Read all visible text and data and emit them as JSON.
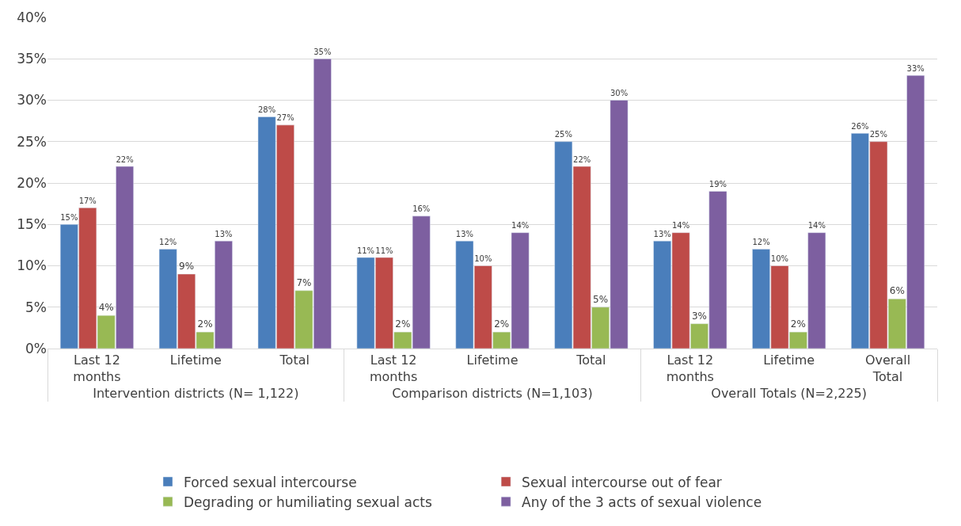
{
  "chart_data": {
    "type": "bar",
    "categories": [
      "Last 12 months",
      "Lifetime",
      "Total",
      "Last 12 months",
      "Lifetime",
      "Total",
      "Last 12 months",
      "Lifetime",
      "Overall Total"
    ],
    "annotations": [
      "Intervention districts (N= 1,122)",
      "Comparison districts (N=1,103)",
      "Overall Totals (N=2,225)"
    ],
    "series": [
      {
        "name": "Forced sexual intercourse",
        "color": "#4a7ebb",
        "values": [
          15,
          12,
          28,
          11,
          13,
          25,
          13,
          12,
          26
        ],
        "value_labels": [
          "15%",
          "12%",
          "28%",
          "11%",
          "13%",
          "25%",
          "13%",
          "12%",
          "26%"
        ]
      },
      {
        "name": "Sexual intercourse out of fear",
        "color": "#be4b48",
        "values": [
          17,
          9,
          27,
          11,
          10,
          22,
          14,
          10,
          25
        ],
        "value_labels": [
          "17%",
          "9%",
          "27%",
          "11%",
          "10%",
          "22%",
          "14%",
          "10%",
          "25%"
        ]
      },
      {
        "name": "Degrading or humiliating sexual acts",
        "color": "#98b954",
        "values": [
          4,
          2,
          7,
          2,
          2,
          5,
          3,
          2,
          6
        ],
        "value_labels": [
          "4%",
          "2%",
          "7%",
          "2%",
          "2%",
          "5%",
          "3%",
          "2%",
          "6%"
        ]
      },
      {
        "name": "Any of the 3 acts of sexual violence",
        "color": "#7d5fa0",
        "values": [
          22,
          13,
          35,
          16,
          14,
          30,
          19,
          14,
          33
        ],
        "value_labels": [
          "22%",
          "13%",
          "35%",
          "16%",
          "14%",
          "30%",
          "19%",
          "14%",
          "33%"
        ]
      }
    ],
    "ylim": [
      0,
      40
    ],
    "yticks": [
      {
        "value": 0,
        "label": "0%"
      },
      {
        "value": 5,
        "label": "5%"
      },
      {
        "value": 10,
        "label": "10%"
      },
      {
        "value": 15,
        "label": "15%"
      },
      {
        "value": 20,
        "label": "20%"
      },
      {
        "value": 25,
        "label": "25%"
      },
      {
        "value": 30,
        "label": "30%"
      },
      {
        "value": 35,
        "label": "35%"
      },
      {
        "value": 40,
        "label": "40%"
      }
    ],
    "grid": "y",
    "legend": "bottom"
  }
}
